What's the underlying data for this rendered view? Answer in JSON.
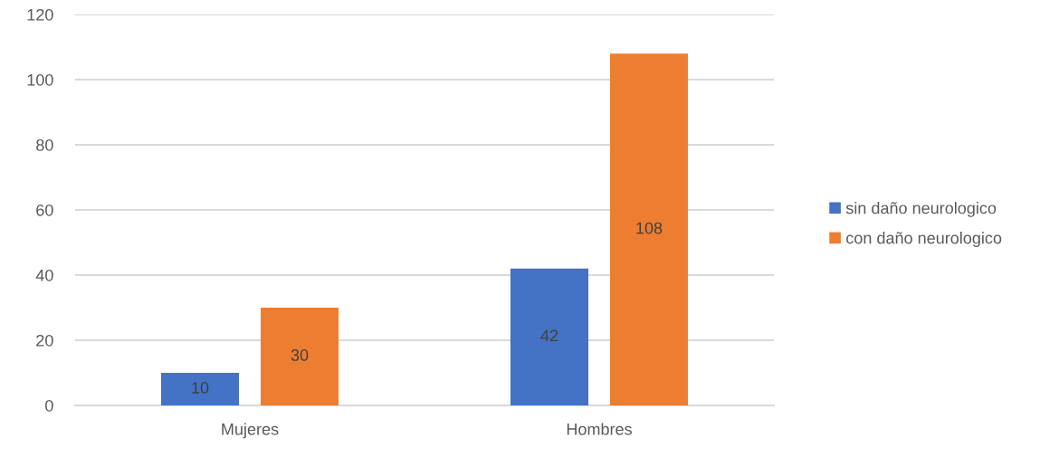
{
  "chart_data": {
    "type": "bar",
    "categories": [
      "Mujeres",
      "Hombres"
    ],
    "series": [
      {
        "name": "sin daño neurologico",
        "color": "#4472c4",
        "values": [
          10,
          42
        ]
      },
      {
        "name": "con daño neurologico",
        "color": "#ed7d31",
        "values": [
          30,
          108
        ]
      }
    ],
    "ylim": [
      0,
      120
    ],
    "yticks": [
      0,
      20,
      40,
      60,
      80,
      100,
      120
    ],
    "grid": "y",
    "legend": "right",
    "data_labels": true
  }
}
